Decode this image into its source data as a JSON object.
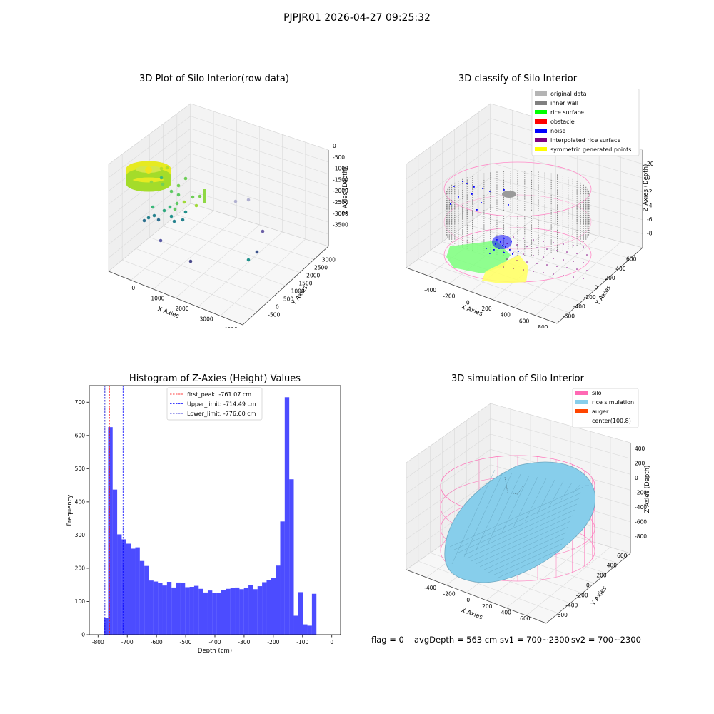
{
  "suptitle": "PJPJR01 2026-04-27 09:25:32",
  "panels": {
    "raw": {
      "title": "3D Plot of Silo Interior(row data)",
      "xlabel": "X Axies",
      "ylabel": "Y Axies",
      "zlabel": "Z Axies (Depth)",
      "xticks": [
        "0",
        "1000",
        "2000",
        "3000",
        "4000"
      ],
      "yticks": [
        "-500",
        "0",
        "500",
        "1000",
        "1500",
        "2000",
        "2500",
        "3000"
      ],
      "zticks": [
        "0",
        "-500",
        "-1000",
        "-1500",
        "-2000",
        "-2500",
        "-3000",
        "-3500"
      ]
    },
    "classify": {
      "title": "3D classify of Silo Interior",
      "xlabel": "X Axies",
      "ylabel": "Y Axies",
      "zlabel": "Z Axies (Depth)",
      "xticks": [
        "-400",
        "-200",
        "0",
        "200",
        "400",
        "600",
        "800"
      ],
      "yticks": [
        "-600",
        "-400",
        "-200",
        "0",
        "200",
        "400",
        "600"
      ],
      "zticks": [
        "200",
        "0",
        "-200",
        "-400",
        "-600",
        "-800"
      ],
      "legend": [
        {
          "label": "original data",
          "color": "#b4b4b4"
        },
        {
          "label": "inner wall",
          "color": "#808080"
        },
        {
          "label": "rice surface",
          "color": "#00ff00"
        },
        {
          "label": "obstacle",
          "color": "#ff0000"
        },
        {
          "label": "noise",
          "color": "#0000ff"
        },
        {
          "label": "interpolated rice surface",
          "color": "#800080"
        },
        {
          "label": "symmetric generated points",
          "color": "#ffff00"
        }
      ]
    },
    "simulation": {
      "title": "3D simulation of Silo Interior",
      "xlabel": "X Axies",
      "ylabel": "Y Axies",
      "zlabel": "Z Axies (Depth)",
      "xticks": [
        "-400",
        "-200",
        "0",
        "200",
        "400",
        "600"
      ],
      "yticks": [
        "-600",
        "-400",
        "-200",
        "0",
        "200",
        "400",
        "600"
      ],
      "zticks": [
        "400",
        "200",
        "0",
        "-200",
        "-400",
        "-600",
        "-800"
      ],
      "legend": [
        {
          "label": "silo",
          "color": "#ff69b4"
        },
        {
          "label": "rice simulation",
          "color": "#87ceeb"
        },
        {
          "label": "auger",
          "color": "#ff4500"
        },
        {
          "label": "center(100,8)",
          "color": ""
        }
      ]
    }
  },
  "status": {
    "flag": "flag = 0",
    "avg_depth": "avgDepth = 563 cm",
    "sv1": "sv1 = 700~2300",
    "sv2": "sv2 = 700~2300"
  },
  "chart_data": [
    {
      "type": "bar",
      "title": "Histogram of Z-Axies (Height) Values",
      "xlabel": "Depth (cm)",
      "ylabel": "Frequency",
      "xlim": [
        -830,
        30
      ],
      "ylim": [
        0,
        750
      ],
      "xticks": [
        -800,
        -700,
        -600,
        -500,
        -400,
        -300,
        -200,
        -100,
        0
      ],
      "yticks": [
        0,
        100,
        200,
        300,
        400,
        500,
        600,
        700
      ],
      "bin_start": -781,
      "bin_width": 15.5,
      "bar_color": "#0000ff",
      "values": [
        50,
        625,
        437,
        302,
        287,
        274,
        259,
        263,
        222,
        207,
        163,
        160,
        156,
        148,
        159,
        142,
        157,
        155,
        143,
        144,
        147,
        138,
        127,
        133,
        126,
        125,
        135,
        138,
        141,
        142,
        137,
        140,
        150,
        137,
        146,
        158,
        165,
        170,
        208,
        341,
        715,
        468,
        57,
        128,
        31,
        27,
        123
      ],
      "vlines": [
        {
          "name": "first_peak",
          "value": -761.07,
          "label": "first_peak: -761.07 cm",
          "color": "#ff0000"
        },
        {
          "name": "Upper_limit",
          "value": -714.49,
          "label": "Upper_limit: -714.49 cm",
          "color": "#0000ff"
        },
        {
          "name": "Lower_limit",
          "value": -776.6,
          "label": "Lower_limit: -776.60 cm",
          "color": "#0000cc"
        }
      ],
      "legend_position": "top-center"
    }
  ]
}
